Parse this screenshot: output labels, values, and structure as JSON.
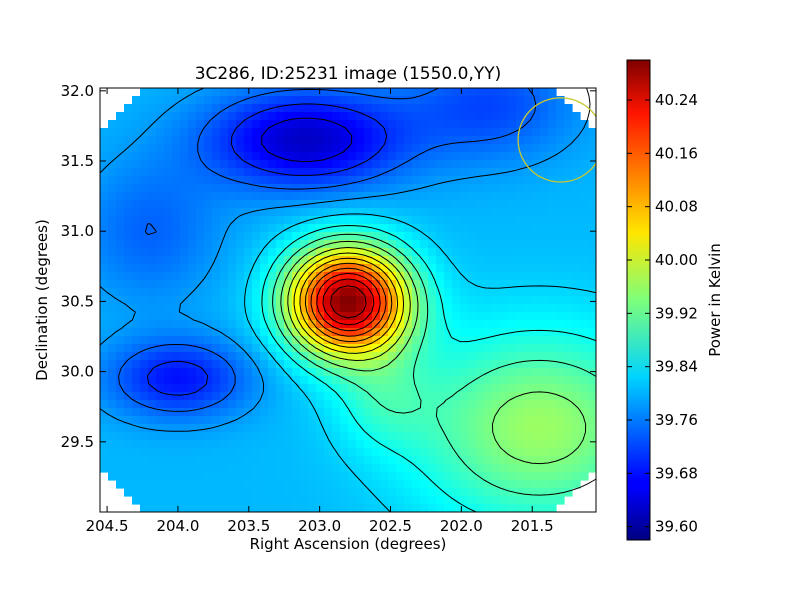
{
  "chart_data": {
    "type": "heatmap",
    "title": "3C286, ID:25231 image (1550.0,YY)",
    "xlabel": "Right Ascension (degrees)",
    "ylabel": "Declination (degrees)",
    "xlim": [
      204.55,
      201.05
    ],
    "ylim": [
      29.0,
      32.02
    ],
    "x_inverted": true,
    "x_ticks": [
      204.5,
      204.0,
      203.5,
      203.0,
      202.5,
      202.0,
      201.5
    ],
    "x_tick_labels": [
      "204.5",
      "204.0",
      "203.5",
      "203.0",
      "202.5",
      "202.0",
      "201.5"
    ],
    "y_ticks": [
      29.5,
      30.0,
      30.5,
      31.0,
      31.5,
      32.0
    ],
    "y_tick_labels": [
      "29.5",
      "30.0",
      "30.5",
      "31.0",
      "31.5",
      "32.0"
    ],
    "colorbar": {
      "label": "Power in Kelvin",
      "colormap": "jet",
      "min": 39.58,
      "max": 40.3,
      "ticks": [
        39.6,
        39.68,
        39.76,
        39.84,
        39.92,
        40.0,
        40.08,
        40.16,
        40.24
      ],
      "tick_labels": [
        "39.60",
        "39.68",
        "39.76",
        "39.84",
        "39.92",
        "40.00",
        "40.08",
        "40.16",
        "40.24"
      ]
    },
    "peak": {
      "ra": 202.8,
      "dec": 30.5,
      "value": 40.29
    },
    "beam_circle": {
      "ra": 201.3,
      "dec": 31.65,
      "radius_deg": 0.3,
      "color": "#c8c832"
    },
    "grid": false,
    "contours": true
  }
}
